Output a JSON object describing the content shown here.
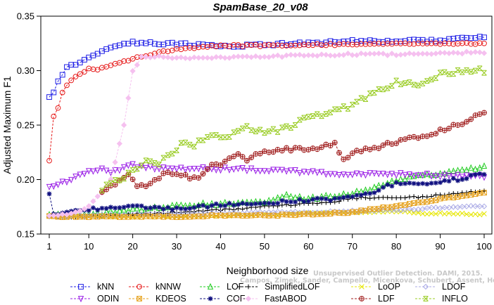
{
  "chart_data": {
    "type": "line",
    "title": "SpamBase_20_v08",
    "xlabel": "Neighborhood size",
    "ylabel": "Adjusted Maximum F1",
    "xlim": [
      1,
      100
    ],
    "ylim": [
      0.15,
      0.35
    ],
    "xticks": [
      1,
      10,
      20,
      30,
      40,
      50,
      60,
      70,
      80,
      90,
      100
    ],
    "yticks": [
      0.15,
      0.2,
      0.25,
      0.3,
      0.35
    ],
    "ytick_labels": [
      "0.15",
      "0.20",
      "0.25",
      "0.30",
      "0.35"
    ],
    "grid": false,
    "legend_position": "bottom",
    "watermark": {
      "line1": "Unsupervised Outlier Detection. DAMI, 2015.",
      "line2": "Campos, Zimek, Sander, Campello, Micenkova, Schubert, Assent, Houle"
    },
    "series": [
      {
        "name": "kNN",
        "color": "#1f1fe6",
        "marker": "square",
        "dashed": true,
        "anchors": [
          [
            1,
            0.275
          ],
          [
            2,
            0.281
          ],
          [
            3,
            0.29
          ],
          [
            4,
            0.297
          ],
          [
            5,
            0.303
          ],
          [
            7,
            0.306
          ],
          [
            10,
            0.313
          ],
          [
            13,
            0.318
          ],
          [
            16,
            0.322
          ],
          [
            20,
            0.326
          ],
          [
            25,
            0.325
          ],
          [
            30,
            0.325
          ],
          [
            40,
            0.322
          ],
          [
            50,
            0.324
          ],
          [
            60,
            0.325
          ],
          [
            70,
            0.327
          ],
          [
            80,
            0.327
          ],
          [
            90,
            0.328
          ],
          [
            100,
            0.331
          ]
        ]
      },
      {
        "name": "kNNW",
        "color": "#e61a1a",
        "marker": "circle",
        "dashed": true,
        "anchors": [
          [
            1,
            0.218
          ],
          [
            2,
            0.258
          ],
          [
            3,
            0.266
          ],
          [
            4,
            0.28
          ],
          [
            5,
            0.287
          ],
          [
            7,
            0.294
          ],
          [
            9,
            0.299
          ],
          [
            10,
            0.302
          ],
          [
            12,
            0.301
          ],
          [
            15,
            0.305
          ],
          [
            20,
            0.311
          ],
          [
            25,
            0.316
          ],
          [
            30,
            0.32
          ],
          [
            40,
            0.323
          ],
          [
            50,
            0.323
          ],
          [
            60,
            0.324
          ],
          [
            70,
            0.324
          ],
          [
            80,
            0.325
          ],
          [
            90,
            0.325
          ],
          [
            100,
            0.325
          ]
        ]
      },
      {
        "name": "LOF",
        "color": "#22cc22",
        "marker": "triangle-up",
        "dashed": true,
        "anchors": [
          [
            1,
            0.167
          ],
          [
            5,
            0.168
          ],
          [
            10,
            0.168
          ],
          [
            15,
            0.17
          ],
          [
            20,
            0.172
          ],
          [
            30,
            0.176
          ],
          [
            40,
            0.178
          ],
          [
            50,
            0.179
          ],
          [
            55,
            0.185
          ],
          [
            60,
            0.182
          ],
          [
            65,
            0.185
          ],
          [
            70,
            0.187
          ],
          [
            75,
            0.193
          ],
          [
            80,
            0.199
          ],
          [
            85,
            0.203
          ],
          [
            90,
            0.205
          ],
          [
            95,
            0.208
          ],
          [
            100,
            0.212
          ]
        ]
      },
      {
        "name": "SimplifiedLOF",
        "color": "#000000",
        "marker": "plus",
        "dashed": true,
        "anchors": [
          [
            1,
            0.166
          ],
          [
            10,
            0.166
          ],
          [
            20,
            0.168
          ],
          [
            30,
            0.17
          ],
          [
            40,
            0.172
          ],
          [
            50,
            0.175
          ],
          [
            60,
            0.178
          ],
          [
            65,
            0.179
          ],
          [
            70,
            0.183
          ],
          [
            75,
            0.183
          ],
          [
            80,
            0.183
          ],
          [
            85,
            0.184
          ],
          [
            90,
            0.186
          ],
          [
            95,
            0.188
          ],
          [
            100,
            0.189
          ]
        ]
      },
      {
        "name": "LoOP",
        "color": "#e6e600",
        "marker": "x",
        "dashed": true,
        "anchors": [
          [
            1,
            0.166
          ],
          [
            10,
            0.166
          ],
          [
            20,
            0.166
          ],
          [
            30,
            0.166
          ],
          [
            40,
            0.167
          ],
          [
            50,
            0.168
          ],
          [
            60,
            0.169
          ],
          [
            70,
            0.17
          ],
          [
            80,
            0.171
          ],
          [
            85,
            0.169
          ],
          [
            90,
            0.169
          ],
          [
            100,
            0.168
          ]
        ]
      },
      {
        "name": "LDOF",
        "color": "#ababe6",
        "marker": "diamond",
        "dashed": true,
        "anchors": [
          [
            1,
            0.166
          ],
          [
            10,
            0.167
          ],
          [
            20,
            0.168
          ],
          [
            30,
            0.168
          ],
          [
            40,
            0.169
          ],
          [
            50,
            0.17
          ],
          [
            60,
            0.17
          ],
          [
            70,
            0.171
          ],
          [
            80,
            0.172
          ],
          [
            90,
            0.174
          ],
          [
            100,
            0.176
          ]
        ]
      },
      {
        "name": "ODIN",
        "color": "#9a1fe6",
        "marker": "triangle-down",
        "dashed": true,
        "anchors": [
          [
            1,
            0.192
          ],
          [
            3,
            0.195
          ],
          [
            5,
            0.199
          ],
          [
            8,
            0.204
          ],
          [
            10,
            0.209
          ],
          [
            13,
            0.209
          ],
          [
            15,
            0.206
          ],
          [
            18,
            0.211
          ],
          [
            20,
            0.213
          ],
          [
            25,
            0.211
          ],
          [
            30,
            0.21
          ],
          [
            35,
            0.211
          ],
          [
            40,
            0.21
          ],
          [
            50,
            0.209
          ],
          [
            60,
            0.207
          ],
          [
            70,
            0.205
          ],
          [
            80,
            0.205
          ],
          [
            90,
            0.204
          ],
          [
            100,
            0.202
          ]
        ]
      },
      {
        "name": "KDEOS",
        "color": "#e6a21f",
        "marker": "square-x",
        "dashed": true,
        "anchors": [
          [
            1,
            0.166
          ],
          [
            10,
            0.166
          ],
          [
            20,
            0.166
          ],
          [
            30,
            0.166
          ],
          [
            40,
            0.167
          ],
          [
            50,
            0.167
          ],
          [
            60,
            0.168
          ],
          [
            70,
            0.17
          ],
          [
            80,
            0.176
          ],
          [
            90,
            0.182
          ],
          [
            100,
            0.188
          ]
        ]
      },
      {
        "name": "COF",
        "color": "#101080",
        "marker": "asterisk",
        "dashed": true,
        "anchors": [
          [
            1,
            0.186
          ],
          [
            2,
            0.168
          ],
          [
            5,
            0.169
          ],
          [
            10,
            0.173
          ],
          [
            15,
            0.174
          ],
          [
            20,
            0.175
          ],
          [
            30,
            0.173
          ],
          [
            40,
            0.177
          ],
          [
            50,
            0.178
          ],
          [
            55,
            0.18
          ],
          [
            60,
            0.181
          ],
          [
            65,
            0.182
          ],
          [
            70,
            0.184
          ],
          [
            75,
            0.187
          ],
          [
            78,
            0.194
          ],
          [
            80,
            0.196
          ],
          [
            85,
            0.196
          ],
          [
            90,
            0.198
          ],
          [
            95,
            0.201
          ],
          [
            100,
            0.205
          ]
        ]
      },
      {
        "name": "FastABOD",
        "color": "#f5c0ef",
        "marker": "diamond-filled",
        "dashed": true,
        "anchors": [
          [
            1,
            0.166
          ],
          [
            3,
            0.167
          ],
          [
            5,
            0.168
          ],
          [
            7,
            0.17
          ],
          [
            9,
            0.173
          ],
          [
            11,
            0.18
          ],
          [
            13,
            0.188
          ],
          [
            15,
            0.2
          ],
          [
            18,
            0.25
          ],
          [
            20,
            0.3
          ],
          [
            22,
            0.312
          ],
          [
            25,
            0.313
          ],
          [
            30,
            0.312
          ],
          [
            40,
            0.312
          ],
          [
            50,
            0.313
          ],
          [
            60,
            0.314
          ],
          [
            70,
            0.315
          ],
          [
            80,
            0.315
          ],
          [
            90,
            0.316
          ],
          [
            100,
            0.317
          ]
        ]
      },
      {
        "name": "LDF",
        "color": "#a01d1d",
        "marker": "circle-plus",
        "dashed": true,
        "anchors": [
          [
            13,
            0.19
          ],
          [
            15,
            0.193
          ],
          [
            17,
            0.2
          ],
          [
            19,
            0.206
          ],
          [
            21,
            0.195
          ],
          [
            23,
            0.192
          ],
          [
            24,
            0.196
          ],
          [
            26,
            0.202
          ],
          [
            28,
            0.206
          ],
          [
            30,
            0.205
          ],
          [
            32,
            0.203
          ],
          [
            34,
            0.201
          ],
          [
            36,
            0.204
          ],
          [
            38,
            0.212
          ],
          [
            40,
            0.215
          ],
          [
            42,
            0.218
          ],
          [
            44,
            0.222
          ],
          [
            46,
            0.219
          ],
          [
            48,
            0.224
          ],
          [
            50,
            0.226
          ],
          [
            55,
            0.228
          ],
          [
            60,
            0.229
          ],
          [
            63,
            0.23
          ],
          [
            66,
            0.233
          ],
          [
            68,
            0.219
          ],
          [
            70,
            0.224
          ],
          [
            75,
            0.229
          ],
          [
            80,
            0.235
          ],
          [
            85,
            0.239
          ],
          [
            90,
            0.245
          ],
          [
            95,
            0.252
          ],
          [
            100,
            0.261
          ]
        ]
      },
      {
        "name": "INFLO",
        "color": "#99cc22",
        "marker": "hourglass",
        "dashed": true,
        "anchors": [
          [
            13,
            0.192
          ],
          [
            15,
            0.196
          ],
          [
            17,
            0.2
          ],
          [
            19,
            0.205
          ],
          [
            21,
            0.211
          ],
          [
            23,
            0.219
          ],
          [
            25,
            0.214
          ],
          [
            27,
            0.218
          ],
          [
            29,
            0.225
          ],
          [
            31,
            0.232
          ],
          [
            34,
            0.232
          ],
          [
            36,
            0.238
          ],
          [
            38,
            0.242
          ],
          [
            40,
            0.24
          ],
          [
            42,
            0.241
          ],
          [
            44,
            0.246
          ],
          [
            46,
            0.25
          ],
          [
            48,
            0.243
          ],
          [
            50,
            0.245
          ],
          [
            54,
            0.246
          ],
          [
            56,
            0.248
          ],
          [
            58,
            0.254
          ],
          [
            60,
            0.256
          ],
          [
            62,
            0.258
          ],
          [
            65,
            0.263
          ],
          [
            70,
            0.268
          ],
          [
            75,
            0.28
          ],
          [
            78,
            0.283
          ],
          [
            80,
            0.29
          ],
          [
            85,
            0.287
          ],
          [
            90,
            0.297
          ],
          [
            95,
            0.3
          ],
          [
            100,
            0.3
          ]
        ]
      }
    ]
  }
}
